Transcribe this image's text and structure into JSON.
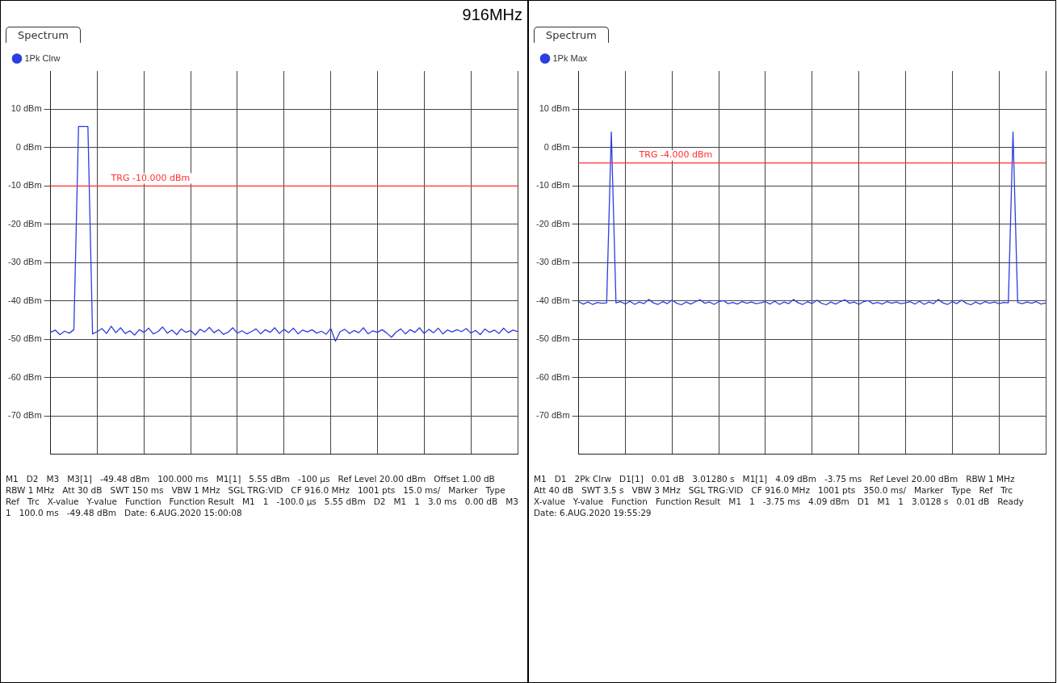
{
  "chart_data": [
    {
      "type": "line",
      "title": "916MHz",
      "subtitle": "Spectrum",
      "categories": [
        null,
        null,
        null,
        null,
        null,
        null,
        null,
        null,
        null,
        null,
        null,
        null,
        null,
        null,
        null,
        null,
        null,
        null,
        null,
        null,
        null,
        null,
        null,
        null,
        null,
        null,
        null,
        null,
        null,
        null,
        null,
        null,
        null,
        null,
        null,
        null,
        null,
        null,
        null,
        null,
        null,
        null,
        null,
        null,
        null,
        null,
        null,
        null,
        null,
        null,
        null,
        null,
        null,
        null,
        null,
        null,
        null,
        null,
        null,
        null,
        null,
        null,
        null,
        null,
        null,
        null,
        null,
        null,
        null,
        null,
        null,
        null,
        null,
        null,
        null,
        null,
        null,
        null,
        null,
        null,
        null,
        null,
        null,
        null,
        null,
        null,
        null,
        null,
        null,
        null,
        null,
        null,
        null,
        null,
        null,
        null,
        null,
        null,
        null,
        null,
        null
      ],
      "ylim": [
        -80,
        20
      ],
      "yticks": [
        {
          "value": 10,
          "label": "10 dBm"
        },
        {
          "value": 0,
          "label": "0 dBm"
        },
        {
          "value": -10,
          "label": "-10 dBm"
        },
        {
          "value": -20,
          "label": "-20 dBm"
        },
        {
          "value": -30,
          "label": "-30 dBm"
        },
        {
          "value": -40,
          "label": "-40 dBm"
        },
        {
          "value": -50,
          "label": "-50 dBm"
        },
        {
          "value": -60,
          "label": "-60 dBm"
        },
        {
          "value": -70,
          "label": "-70 dBm"
        }
      ],
      "grid": true,
      "legend": "top left",
      "marker": "none",
      "line_style": "solid",
      "series": [
        {
          "name": "1Pk Clrw",
          "color": "#2b3ee0",
          "values": [
            -48.2,
            -47.6,
            -48.8,
            -47.9,
            -48.4,
            -47.5,
            5.55,
            5.55,
            5.55,
            -48.6,
            -48.0,
            -47.2,
            -48.5,
            -46.6,
            -48.3,
            -47.0,
            -48.5,
            -47.8,
            -48.9,
            -47.5,
            -48.2,
            -47.1,
            -48.6,
            -48.0,
            -46.8,
            -48.4,
            -47.6,
            -48.8,
            -47.3,
            -48.2,
            -47.7,
            -48.9,
            -47.4,
            -48.1,
            -46.9,
            -48.3,
            -47.5,
            -48.7,
            -48.2,
            -47.0,
            -48.4,
            -47.8,
            -48.6,
            -48.0,
            -47.3,
            -48.6,
            -47.5,
            -48.2,
            -47.0,
            -48.5,
            -47.4,
            -48.3,
            -47.1,
            -48.6,
            -47.6,
            -48.1,
            -47.5,
            -48.4,
            -47.9,
            -48.7,
            -47.2,
            -50.5,
            -48.0,
            -47.4,
            -48.5,
            -47.7,
            -48.3,
            -47.0,
            -48.6,
            -47.8,
            -48.2,
            -47.5,
            -48.4,
            -49.48,
            -48.1,
            -47.3,
            -48.6,
            -47.5,
            -48.2,
            -47.0,
            -48.5,
            -47.4,
            -48.3,
            -47.1,
            -48.6,
            -47.6,
            -48.1,
            -47.5,
            -48.0,
            -47.2,
            -48.4,
            -47.7,
            -48.8,
            -47.3,
            -48.2,
            -47.6,
            -48.5,
            -47.1,
            -48.3,
            -47.6,
            -48.0
          ]
        }
      ],
      "ref_lines": [
        {
          "axis": "y",
          "value": -10,
          "label": "TRG -10.000 dBm",
          "color": "#ff3030"
        }
      ],
      "annotations": [
        "M1",
        "D2",
        "M3",
        "M3[1]",
        "-49.48 dBm",
        "100.000 ms",
        "M1[1]",
        "5.55 dBm",
        "-100 µs",
        "Ref Level 20.00 dBm",
        "Offset 1.00 dB",
        "RBW 1 MHz",
        "Att 30 dB",
        "SWT 150 ms",
        "VBW 1 MHz",
        "SGL TRG:VID",
        "CF 916.0 MHz",
        "1001 pts",
        "15.0 ms/",
        "Marker",
        "Type",
        "Ref",
        "Trc",
        "X-value",
        "Y-value",
        "Function",
        "Function Result",
        "M1",
        "1",
        "-100.0 µs",
        "5.55 dBm",
        "D2",
        "M1",
        "1",
        "3.0 ms",
        "0.00 dB",
        "M3",
        "1",
        "100.0 ms",
        "-49.48 dBm",
        "Date: 6.AUG.2020 15:00:08"
      ]
    },
    {
      "type": "line",
      "subtitle": "Spectrum",
      "categories": [
        null,
        null,
        null,
        null,
        null,
        null,
        null,
        null,
        null,
        null,
        null,
        null,
        null,
        null,
        null,
        null,
        null,
        null,
        null,
        null,
        null,
        null,
        null,
        null,
        null,
        null,
        null,
        null,
        null,
        null,
        null,
        null,
        null,
        null,
        null,
        null,
        null,
        null,
        null,
        null,
        null,
        null,
        null,
        null,
        null,
        null,
        null,
        null,
        null,
        null,
        null,
        null,
        null,
        null,
        null,
        null,
        null,
        null,
        null,
        null,
        null,
        null,
        null,
        null,
        null,
        null,
        null,
        null,
        null,
        null,
        null,
        null,
        null,
        null,
        null,
        null,
        null,
        null,
        null,
        null,
        null,
        null,
        null,
        null,
        null,
        null,
        null,
        null,
        null,
        null,
        null,
        null,
        null,
        null,
        null,
        null,
        null,
        null,
        null,
        null,
        null
      ],
      "ylim": [
        -80,
        20
      ],
      "yticks": [
        {
          "value": 10,
          "label": "10 dBm"
        },
        {
          "value": 0,
          "label": "0 dBm"
        },
        {
          "value": -10,
          "label": "-10 dBm"
        },
        {
          "value": -20,
          "label": "-20 dBm"
        },
        {
          "value": -30,
          "label": "-30 dBm"
        },
        {
          "value": -40,
          "label": "-40 dBm"
        },
        {
          "value": -50,
          "label": "-50 dBm"
        },
        {
          "value": -60,
          "label": "-60 dBm"
        },
        {
          "value": -70,
          "label": "-70 dBm"
        }
      ],
      "grid": true,
      "legend": "top left",
      "marker": "none",
      "line_style": "solid",
      "series": [
        {
          "name": "1Pk Max",
          "color": "#2b3ee0",
          "values": [
            -40.2,
            -40.8,
            -40.3,
            -40.9,
            -40.4,
            -40.6,
            -40.5,
            4.09,
            -40.5,
            -40.2,
            -40.8,
            -40.1,
            -40.9,
            -40.3,
            -40.7,
            -39.6,
            -40.5,
            -40.9,
            -40.2,
            -40.7,
            -39.8,
            -40.6,
            -41.0,
            -40.3,
            -40.8,
            -40.2,
            -39.7,
            -40.6,
            -40.3,
            -40.9,
            -40.2,
            -39.9,
            -40.7,
            -40.4,
            -40.8,
            -40.2,
            -40.6,
            -40.3,
            -40.7,
            -40.5,
            -40.2,
            -40.8,
            -40.1,
            -40.9,
            -40.3,
            -40.7,
            -39.6,
            -40.5,
            -40.9,
            -40.2,
            -40.7,
            -39.8,
            -40.6,
            -41.0,
            -40.3,
            -40.8,
            -40.2,
            -39.7,
            -40.6,
            -40.3,
            -40.9,
            -40.2,
            -39.9,
            -40.7,
            -40.4,
            -40.8,
            -40.2,
            -40.6,
            -40.3,
            -40.7,
            -40.5,
            -40.2,
            -40.8,
            -40.1,
            -40.9,
            -40.3,
            -40.7,
            -39.6,
            -40.5,
            -40.9,
            -40.2,
            -40.7,
            -39.8,
            -40.6,
            -41.0,
            -40.3,
            -40.8,
            -40.2,
            -40.6,
            -40.3,
            -40.7,
            -40.4,
            -40.5,
            4.1,
            -40.4,
            -40.7,
            -40.3,
            -40.6,
            -40.2,
            -40.8,
            -40.5
          ]
        }
      ],
      "ref_lines": [
        {
          "axis": "y",
          "value": -4,
          "label": "TRG -4.000 dBm",
          "color": "#ff3030"
        }
      ],
      "annotations": [
        "M1",
        "D1",
        "2Pk Clrw",
        "D1[1]",
        "0.01 dB",
        "3.01280 s",
        "M1[1]",
        "4.09 dBm",
        "-3.75 ms",
        "Ref Level 20.00 dBm",
        "RBW 1 MHz",
        "Att 40 dB",
        "SWT 3.5 s",
        "VBW 3 MHz",
        "SGL TRG:VID",
        "CF 916.0 MHz",
        "1001 pts",
        "350.0 ms/",
        "Marker",
        "Type",
        "Ref",
        "Trc",
        "X-value",
        "Y-value",
        "Function",
        "Function Result",
        "M1",
        "1",
        "-3.75 ms",
        "4.09 dBm",
        "D1",
        "M1",
        "1",
        "3.0128 s",
        "0.01 dB",
        "Ready",
        "Date: 6.AUG.2020 19:55:29"
      ]
    }
  ]
}
